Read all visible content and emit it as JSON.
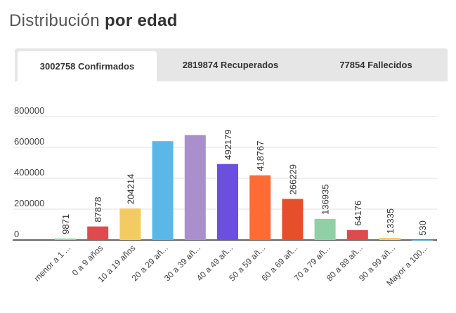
{
  "header": {
    "title_regular": "Distribución",
    "title_bold": "por edad"
  },
  "tabs": [
    {
      "label": "3002758 Confirmados",
      "active": true
    },
    {
      "label": "2819874 Recuperados",
      "active": false
    },
    {
      "label": "77854 Fallecidos",
      "active": false
    }
  ],
  "chart_data": {
    "type": "bar",
    "title": "",
    "xlabel": "",
    "ylabel": "",
    "ylim": [
      0,
      800000
    ],
    "yticks": [
      "800000",
      "600000",
      "400000",
      "200000",
      "0"
    ],
    "grid": true,
    "categories": [
      "menor a 1 ...",
      "0 a 9 años",
      "10 a 19 años",
      "20 a 29 añ...",
      "30 a 39 añ...",
      "40 a 49 añ...",
      "50 a 59 añ...",
      "60 a 69 añ...",
      "70 a 79 añ...",
      "80 a 89 añ...",
      "90 a 99 añ...",
      "Mayor a 100..."
    ],
    "values": [
      9871,
      87878,
      204214,
      640000,
      680000,
      492179,
      418767,
      266229,
      136935,
      64176,
      13335,
      530
    ],
    "labels": [
      "9871",
      "87878",
      "204214",
      "",
      "",
      "492179",
      "418767",
      "266229",
      "136935",
      "64176",
      "13335",
      "530"
    ],
    "colors": [
      "#8fd0a6",
      "#dd4b4f",
      "#f2cc63",
      "#5ab7e8",
      "#a98fcc",
      "#6b4fde",
      "#ff6b35",
      "#e5502a",
      "#8fd0a6",
      "#dd4b4f",
      "#f2cc63",
      "#5ab7e8"
    ]
  }
}
